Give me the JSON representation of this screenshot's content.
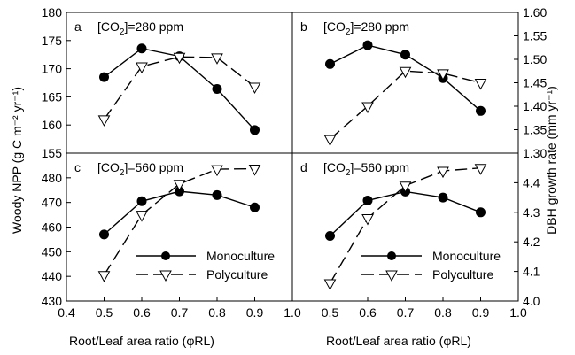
{
  "figure": {
    "y_label_left": "Woody NPP (g C m⁻² yr⁻¹)",
    "y_label_right": "DBH growth rate (mm yr⁻¹)",
    "x_label_left": "Root/Leaf area ratio (φRL)",
    "x_label_right": "Root/Leaf area ratio (φRL)",
    "legend_labels": [
      "Monoculture",
      "Polyculture"
    ]
  },
  "chart_data": [
    {
      "type": "line",
      "panel": "a",
      "annotation": "[CO2]=280 ppm",
      "x": [
        0.5,
        0.6,
        0.7,
        0.8,
        0.9
      ],
      "xlim": [
        0.4,
        1.0
      ],
      "ylim": [
        155,
        180
      ],
      "yticks": [
        155,
        160,
        165,
        170,
        175,
        180
      ],
      "series": [
        {
          "name": "Monoculture",
          "marker": "filled-circle",
          "line": "solid",
          "values": [
            168.5,
            173.6,
            172.2,
            166.4,
            159.1
          ]
        },
        {
          "name": "Polyculture",
          "marker": "open-triangle-down",
          "line": "dashed",
          "values": [
            161.0,
            170.4,
            172.1,
            172.0,
            166.8
          ]
        }
      ]
    },
    {
      "type": "line",
      "panel": "b",
      "annotation": "[CO2]=280 ppm",
      "x": [
        0.5,
        0.6,
        0.7,
        0.8,
        0.9
      ],
      "xlim": [
        0.4,
        1.0
      ],
      "ylim": [
        1.3,
        1.6
      ],
      "yticks": [
        1.3,
        1.35,
        1.4,
        1.45,
        1.5,
        1.55,
        1.6
      ],
      "series": [
        {
          "name": "Monoculture",
          "marker": "filled-circle",
          "line": "solid",
          "values": [
            1.49,
            1.53,
            1.51,
            1.46,
            1.39
          ]
        },
        {
          "name": "Polyculture",
          "marker": "open-triangle-down",
          "line": "dashed",
          "values": [
            1.33,
            1.4,
            1.475,
            1.47,
            1.45
          ]
        }
      ]
    },
    {
      "type": "line",
      "panel": "c",
      "annotation": "[CO2]=560 ppm",
      "x": [
        0.5,
        0.6,
        0.7,
        0.8,
        0.9
      ],
      "xlim": [
        0.4,
        1.0
      ],
      "ylim": [
        430,
        490
      ],
      "yticks": [
        430,
        440,
        450,
        460,
        470,
        480
      ],
      "series": [
        {
          "name": "Monoculture",
          "marker": "filled-circle",
          "line": "solid",
          "values": [
            457.0,
            470.5,
            474.5,
            473.0,
            468.0
          ]
        },
        {
          "name": "Polyculture",
          "marker": "open-triangle-down",
          "line": "dashed",
          "values": [
            440.5,
            465.0,
            477.5,
            483.5,
            483.7
          ]
        }
      ]
    },
    {
      "type": "line",
      "panel": "d",
      "annotation": "[CO2]=560 ppm",
      "x": [
        0.5,
        0.6,
        0.7,
        0.8,
        0.9
      ],
      "xlim": [
        0.4,
        1.0
      ],
      "ylim": [
        4.0,
        4.5
      ],
      "yticks": [
        4.0,
        4.1,
        4.2,
        4.3,
        4.4
      ],
      "series": [
        {
          "name": "Monoculture",
          "marker": "filled-circle",
          "line": "solid",
          "values": [
            4.22,
            4.34,
            4.37,
            4.35,
            4.3
          ]
        },
        {
          "name": "Polyculture",
          "marker": "open-triangle-down",
          "line": "dashed",
          "values": [
            4.06,
            4.28,
            4.39,
            4.44,
            4.45
          ]
        }
      ]
    }
  ]
}
